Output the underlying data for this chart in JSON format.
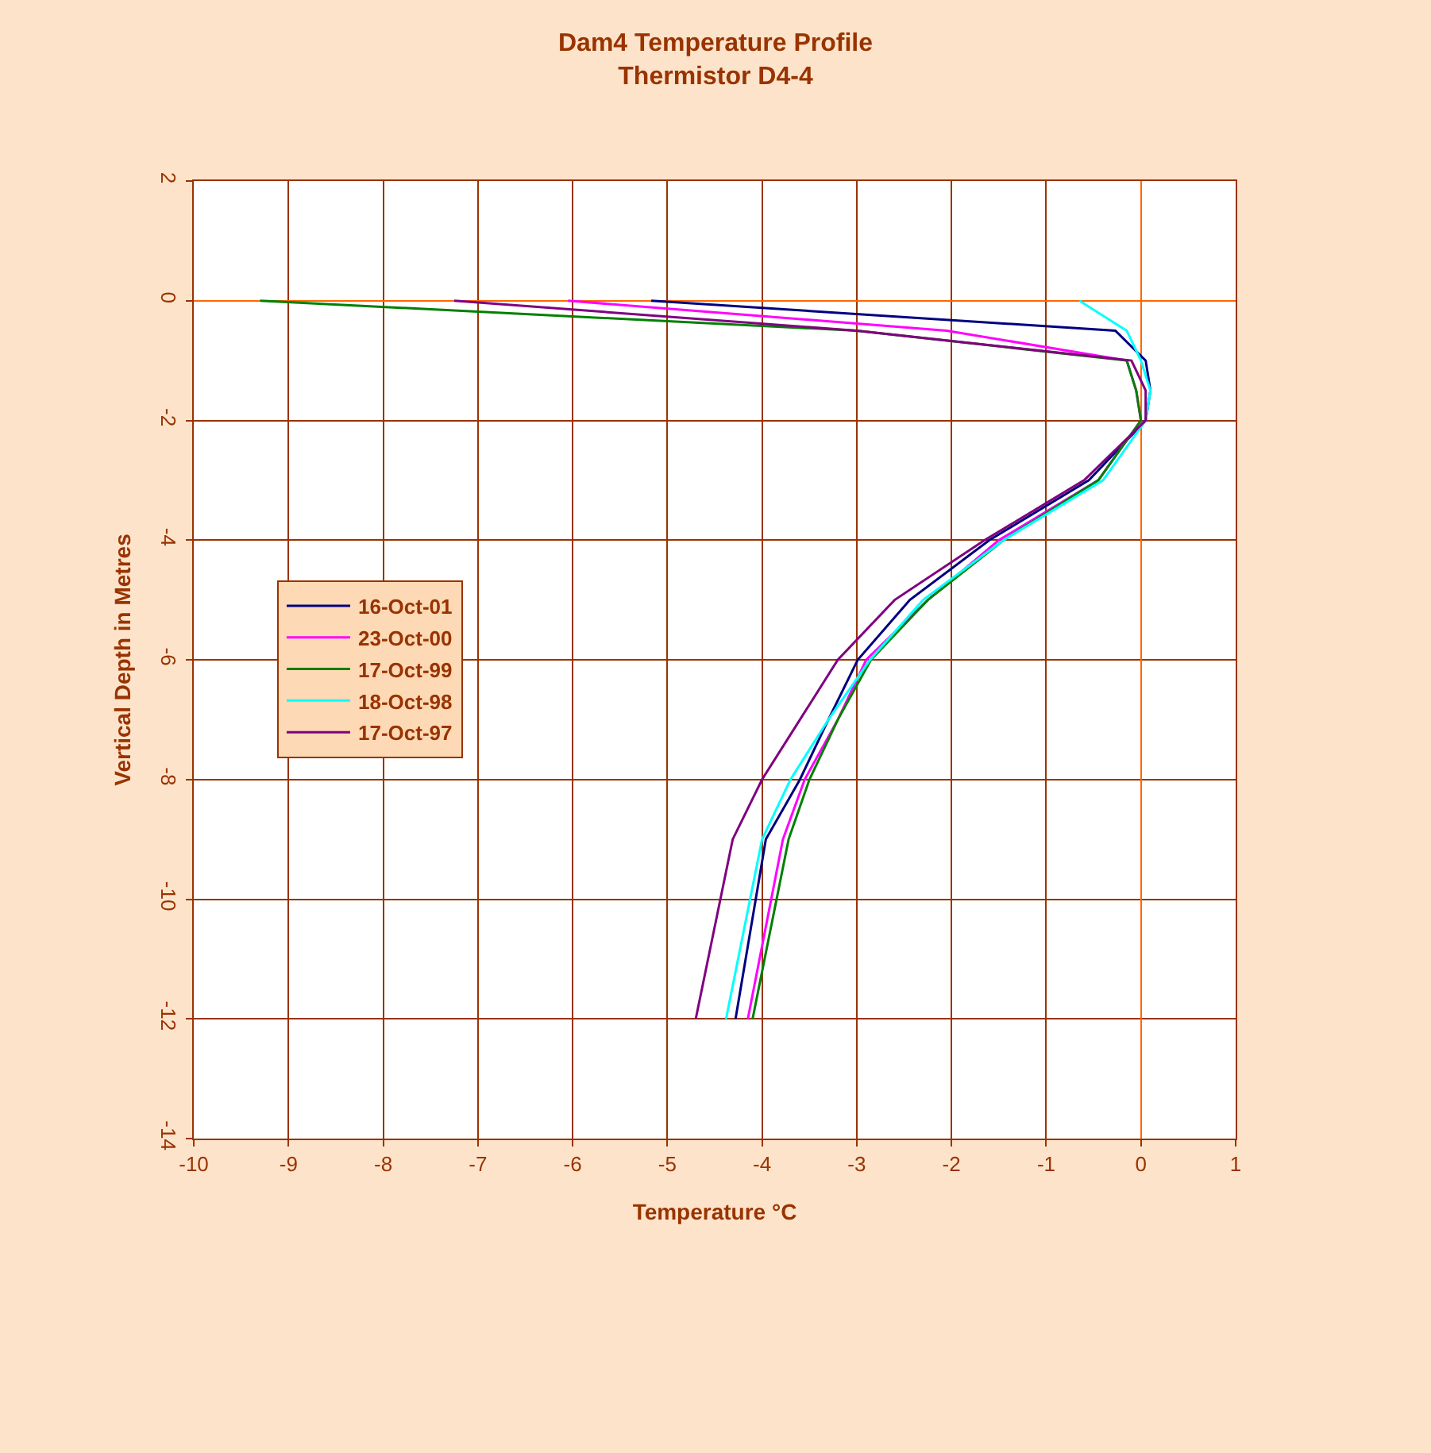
{
  "chart_data": {
    "type": "line",
    "title": "Dam4 Temperature Profile",
    "subtitle": "Thermistor D4-4",
    "xlabel": "Temperature °C",
    "ylabel": "Vertical Depth in Metres",
    "xlim": [
      -10,
      1
    ],
    "xticks": [
      -10,
      -9,
      -8,
      -7,
      -6,
      -5,
      -4,
      -3,
      -2,
      -1,
      0,
      1
    ],
    "ylim": [
      -14,
      2
    ],
    "yticks": [
      -14,
      -12,
      -10,
      -8,
      -6,
      -4,
      -2,
      0,
      2
    ],
    "grid": true,
    "legend": "left",
    "marker": "none",
    "line_style": "solid",
    "series": [
      {
        "name": "16-Oct-01",
        "color": "#000080",
        "x": [
          -5.17,
          -0.27,
          0.05,
          0.1,
          0.05,
          -0.55,
          -1.6,
          -2.44,
          -2.99,
          -3.3,
          -3.6,
          -3.96,
          -4.28
        ],
        "values": [
          0,
          -0.5,
          -1,
          -1.5,
          -2,
          -3,
          -4,
          -5,
          -6,
          -7,
          -8,
          -9,
          -12
        ]
      },
      {
        "name": "23-Oct-00",
        "color": "#ff00ff",
        "x": [
          -6.05,
          -2.05,
          -0.15,
          -0.05,
          0.0,
          -0.45,
          -1.5,
          -2.25,
          -2.9,
          -3.2,
          -3.55,
          -3.78,
          -4.15
        ],
        "values": [
          0,
          -0.5,
          -1,
          -1.5,
          -2,
          -3,
          -4,
          -5,
          -6,
          -7,
          -8,
          -9,
          -12
        ]
      },
      {
        "name": "17-Oct-99",
        "color": "#008000",
        "x": [
          -9.3,
          -3.0,
          -0.15,
          -0.05,
          0.0,
          -0.45,
          -1.45,
          -2.25,
          -2.85,
          -3.2,
          -3.5,
          -3.72,
          -4.1
        ],
        "values": [
          0,
          -0.5,
          -1,
          -1.5,
          -2,
          -3,
          -4,
          -5,
          -6,
          -7,
          -8,
          -9,
          -12
        ]
      },
      {
        "name": "18-Oct-98",
        "color": "#00ffff",
        "x": [
          -0.65,
          -0.15,
          0.0,
          0.1,
          0.05,
          -0.4,
          -1.45,
          -2.3,
          -2.86,
          -3.3,
          -3.7,
          -4.0,
          -4.38
        ],
        "values": [
          0,
          -0.5,
          -1,
          -1.5,
          -2,
          -3,
          -4,
          -5,
          -6,
          -7,
          -8,
          -9,
          -12
        ]
      },
      {
        "name": "17-Oct-97",
        "color": "#800080",
        "x": [
          -7.25,
          -3.0,
          -0.1,
          0.05,
          0.05,
          -0.6,
          -1.65,
          -2.6,
          -3.2,
          -3.6,
          -4.0,
          -4.31,
          -4.7
        ],
        "values": [
          0,
          -0.5,
          -1,
          -1.5,
          -2,
          -3,
          -4,
          -5,
          -6,
          -7,
          -8,
          -9,
          -12
        ]
      }
    ]
  }
}
